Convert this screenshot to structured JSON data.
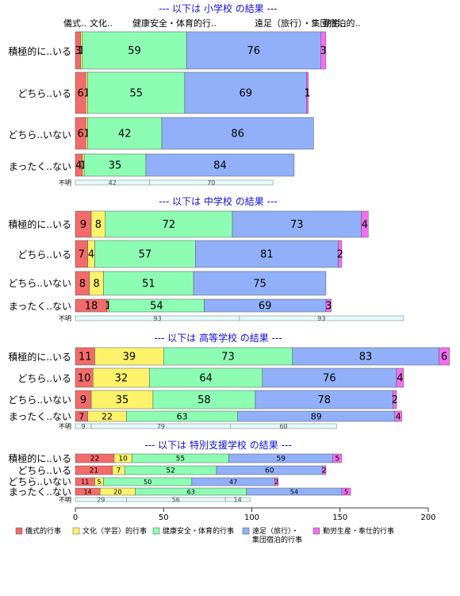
{
  "chart_data": {
    "type": "bar",
    "orientation": "horizontal",
    "stacked": true,
    "xlim": [
      0,
      200
    ],
    "xticks": [
      0,
      50,
      100,
      150,
      200
    ],
    "header_labels": [
      "儀式..",
      "文化..",
      "健康安全・体育的行..",
      "遠足（旅行）・集団宿泊的..",
      "勤労.."
    ],
    "legend": {
      "placement": "bottom",
      "entries": [
        {
          "label": "儀式的行事",
          "color": "#f26b6b"
        },
        {
          "label": "文化（学芸）的行事",
          "color": "#fdf36b"
        },
        {
          "label": "健康安全・体育的行事",
          "color": "#8dfdb4"
        },
        {
          "label": "遠足（旅行）・集団宿泊的行事",
          "color": "#91b0f9"
        },
        {
          "label": "勤労生産・奉仕的行事",
          "color": "#f270f0"
        }
      ]
    },
    "panels": [
      {
        "title": "--- 以下は 小学校 の結果 ---",
        "categories": [
          "積極的に..いる",
          "どちら..いる",
          "どちら..いない",
          "まったく..ない"
        ],
        "series": [
          {
            "name": "儀式的行事",
            "values": [
              3,
              6,
              6,
              4
            ]
          },
          {
            "name": "文化（学芸）的行事",
            "values": [
              1,
              1,
              1,
              1
            ]
          },
          {
            "name": "健康安全・体育的行事",
            "values": [
              59,
              55,
              42,
              35
            ]
          },
          {
            "name": "遠足（旅行）・集団宿泊的行事",
            "values": [
              76,
              69,
              86,
              84
            ]
          },
          {
            "name": "勤労生産・奉仕的行事",
            "values": [
              3,
              1,
              0,
              0
            ]
          }
        ],
        "unknown": {
          "label": "不明",
          "values": [
            0,
            0,
            42,
            70,
            0
          ]
        }
      },
      {
        "title": "--- 以下は 中学校 の結果 ---",
        "categories": [
          "積極的に..いる",
          "どちら..いる",
          "どちら..いない",
          "まったく..ない"
        ],
        "series": [
          {
            "name": "儀式的行事",
            "values": [
              9,
              7,
              8,
              18
            ]
          },
          {
            "name": "文化（学芸）的行事",
            "values": [
              8,
              4,
              8,
              1
            ]
          },
          {
            "name": "健康安全・体育的行事",
            "values": [
              72,
              57,
              51,
              54
            ]
          },
          {
            "name": "遠足（旅行）・集団宿泊的行事",
            "values": [
              73,
              81,
              75,
              69
            ]
          },
          {
            "name": "勤労生産・奉仕的行事",
            "values": [
              4,
              2,
              0,
              3
            ]
          }
        ],
        "unknown": {
          "label": "不明",
          "values": [
            0,
            0,
            93,
            93,
            0
          ]
        }
      },
      {
        "title": "--- 以下は 高等学校 の結果 ---",
        "categories": [
          "積極的に..いる",
          "どちら..いる",
          "どちら..いない",
          "まったく..ない"
        ],
        "series": [
          {
            "name": "儀式的行事",
            "values": [
              11,
              10,
              9,
              7
            ]
          },
          {
            "name": "文化（学芸）的行事",
            "values": [
              39,
              32,
              35,
              22
            ]
          },
          {
            "name": "健康安全・体育的行事",
            "values": [
              73,
              64,
              58,
              63
            ]
          },
          {
            "name": "遠足（旅行）・集団宿泊的行事",
            "values": [
              83,
              76,
              78,
              89
            ]
          },
          {
            "name": "勤労生産・奉仕的行事",
            "values": [
              6,
              4,
              2,
              4
            ]
          }
        ],
        "unknown": {
          "label": "不明",
          "values": [
            9,
            0,
            79,
            60,
            0
          ]
        }
      },
      {
        "title": "--- 以下は 特別支援学校 の結果 ---",
        "categories": [
          "積極的に..いる",
          "どちら..いる",
          "どちら..いない",
          "まったく..ない"
        ],
        "series": [
          {
            "name": "儀式的行事",
            "values": [
              22,
              21,
              11,
              14
            ]
          },
          {
            "name": "文化（学芸）的行事",
            "values": [
              10,
              7,
              5,
              20
            ]
          },
          {
            "name": "健康安全・体育的行事",
            "values": [
              55,
              52,
              50,
              63
            ]
          },
          {
            "name": "遠足（旅行）・集団宿泊的行事",
            "values": [
              59,
              60,
              47,
              54
            ]
          },
          {
            "name": "勤労生産・奉仕的行事",
            "values": [
              5,
              2,
              2,
              5
            ]
          }
        ],
        "unknown": {
          "label": "不明",
          "values": [
            29,
            0,
            56,
            14,
            0
          ]
        }
      }
    ]
  }
}
